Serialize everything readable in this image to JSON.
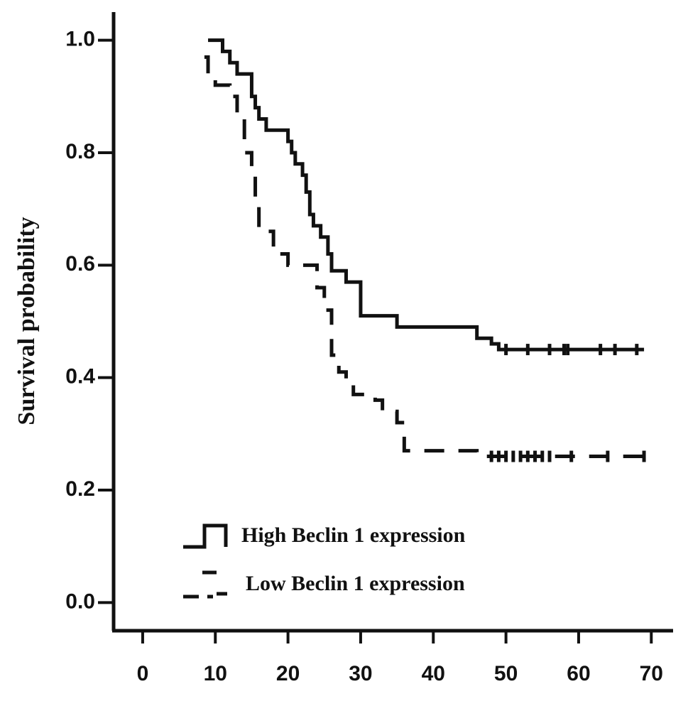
{
  "chart_data": {
    "type": "km",
    "y_label": "Survival probability",
    "xlim": [
      -4,
      73
    ],
    "ylim": [
      -0.05,
      1.05
    ],
    "xticks": [
      0,
      10,
      20,
      30,
      40,
      50,
      60,
      70
    ],
    "yticks": [
      {
        "value": 0,
        "label": "0.0"
      },
      {
        "value": 0.2,
        "label": "0.2"
      },
      {
        "value": 0.4,
        "label": "0.4"
      },
      {
        "value": 0.6,
        "label": "0.6"
      },
      {
        "value": 0.8,
        "label": "0.8"
      },
      {
        "value": 1,
        "label": "1.0"
      }
    ],
    "series": [
      {
        "name": "High Beclin 1 expression",
        "color": "#111111",
        "line_style": "solid",
        "x": [
          9,
          11,
          12,
          13,
          15,
          15.5,
          16,
          17,
          20,
          20.5,
          21,
          22,
          22.5,
          23,
          23.5,
          24.5,
          25.5,
          26,
          28,
          30,
          35,
          46,
          48,
          49,
          69
        ],
        "values": [
          1.0,
          0.98,
          0.96,
          0.94,
          0.9,
          0.88,
          0.86,
          0.84,
          0.82,
          0.8,
          0.78,
          0.76,
          0.73,
          0.69,
          0.67,
          0.65,
          0.62,
          0.59,
          0.57,
          0.51,
          0.49,
          0.47,
          0.46,
          0.45,
          0.45
        ],
        "censored_x": [
          50,
          53,
          56,
          58,
          58.5,
          63,
          65,
          68
        ],
        "censored_y": [
          0.45,
          0.45,
          0.45,
          0.45,
          0.45,
          0.45,
          0.45,
          0.45
        ]
      },
      {
        "name": "Low Beclin 1 expression",
        "color": "#111111",
        "line_style": "dashed",
        "x": [
          8.5,
          9,
          10,
          12,
          13,
          14,
          15,
          15.5,
          16,
          18,
          20,
          24,
          25,
          26,
          27,
          28,
          29,
          32,
          33,
          35,
          36,
          46,
          69
        ],
        "values": [
          0.97,
          0.94,
          0.92,
          0.9,
          0.86,
          0.8,
          0.76,
          0.7,
          0.66,
          0.62,
          0.6,
          0.56,
          0.52,
          0.44,
          0.41,
          0.39,
          0.37,
          0.36,
          0.34,
          0.32,
          0.27,
          0.26,
          0.26
        ],
        "censored_x": [
          48,
          49,
          50,
          51,
          52,
          53,
          54,
          55,
          56,
          59,
          64,
          69
        ],
        "censored_y": [
          0.26,
          0.26,
          0.26,
          0.26,
          0.26,
          0.26,
          0.26,
          0.26,
          0.26,
          0.26,
          0.26,
          0.26
        ]
      }
    ]
  }
}
